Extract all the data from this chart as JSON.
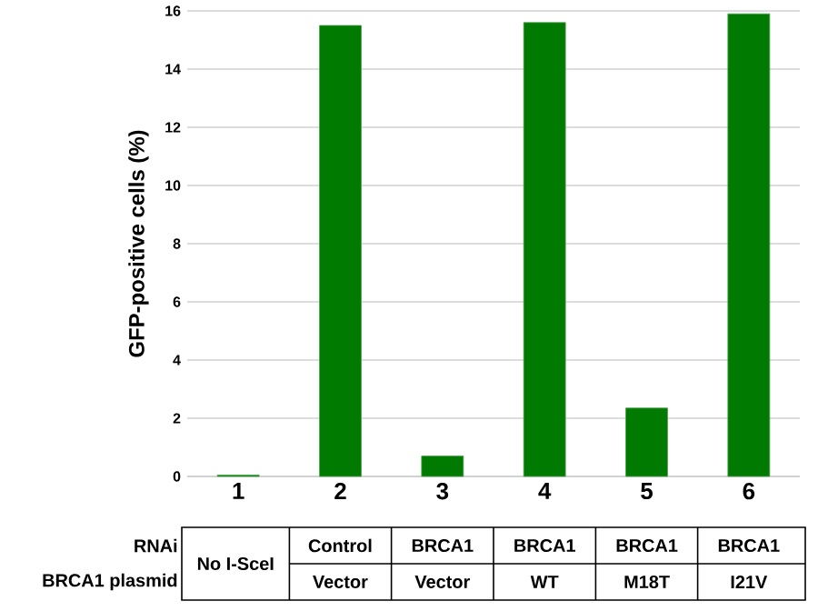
{
  "chart_data": {
    "type": "bar",
    "ylabel": "GFP-positive cells (%)",
    "categories": [
      "1",
      "2",
      "3",
      "4",
      "5",
      "6"
    ],
    "values": [
      0.05,
      15.5,
      0.7,
      15.6,
      2.35,
      15.9
    ],
    "color": "#007a00",
    "ylim": [
      0,
      16
    ],
    "yticks": [
      0,
      2,
      4,
      6,
      8,
      10,
      12,
      14,
      16
    ],
    "grid": "y",
    "annotations": [
      "RNAi",
      "BRCA1 plasmid",
      "No I-SceI",
      "Control",
      "Vector",
      "BRCA1",
      "Vector",
      "BRCA1",
      "WT",
      "BRCA1",
      "M18T",
      "BRCA1",
      "I21V"
    ]
  }
}
